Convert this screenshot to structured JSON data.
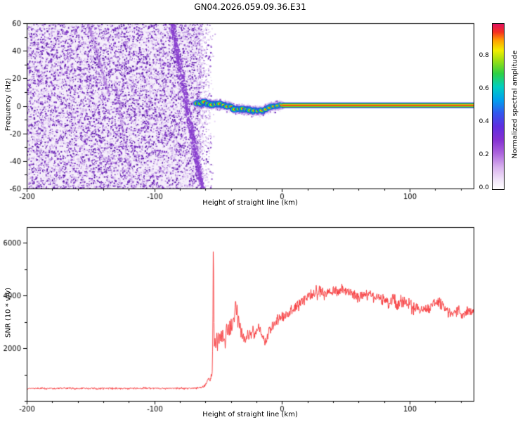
{
  "title": "GN04.2026.059.09.36.E31",
  "chart_data": [
    {
      "type": "heatmap",
      "panel": "spectrogram",
      "title": "GN04.2026.059.09.36.E31",
      "xlabel": "Height of straight line (km)",
      "ylabel": "Frequency (Hz)",
      "xlim": [
        -200,
        150
      ],
      "ylim": [
        -60,
        60
      ],
      "xticks_major": [
        -200,
        -100,
        0,
        100
      ],
      "xtick_minor_step": 20,
      "yticks_major": [
        -60,
        -40,
        -20,
        0,
        20,
        40,
        60
      ],
      "ytick_minor_step": 10,
      "noise_region_x": [
        -200,
        -66
      ],
      "noise_palette": [
        [
          "#f3ebfa",
          0.26
        ],
        [
          "#e7d7f5",
          0.2
        ],
        [
          "#d7bdee",
          0.16
        ],
        [
          "#c29ce4",
          0.13
        ],
        [
          "#a878d8",
          0.1
        ],
        [
          "#8f51cb",
          0.08
        ],
        [
          "#7430bd",
          0.05
        ],
        [
          "#5c1ca8",
          0.02
        ]
      ],
      "streaks": [
        {
          "from": [
            -87,
            60
          ],
          "to": [
            -63,
            -60
          ],
          "width": 2.5,
          "color": "#8a3fd0",
          "alpha": 0.85,
          "density": 900
        },
        {
          "from": [
            -152,
            60
          ],
          "to": [
            -136,
            8
          ],
          "width": 1.6,
          "color": "#a86fd9",
          "alpha": 0.4,
          "density": 260
        },
        {
          "from": [
            -131,
            18
          ],
          "to": [
            -118,
            -60
          ],
          "width": 1.4,
          "color": "#a86fd9",
          "alpha": 0.35,
          "density": 220
        }
      ],
      "signal_path": [
        [
          -67.5,
          1.5
        ],
        [
          -65,
          2.5
        ],
        [
          -63,
          1.0
        ],
        [
          -61,
          2.8
        ],
        [
          -59,
          1.2
        ],
        [
          -57,
          2.2
        ],
        [
          -55,
          0.8
        ],
        [
          -53,
          1.8
        ],
        [
          -51,
          0.5
        ],
        [
          -49,
          1.5
        ],
        [
          -47,
          0.2
        ],
        [
          -45,
          1.0
        ],
        [
          -43,
          -0.5
        ],
        [
          -41,
          0.5
        ],
        [
          -39,
          -1.5
        ],
        [
          -37,
          -2.5
        ],
        [
          -35,
          -1.8
        ],
        [
          -33,
          -2.8
        ],
        [
          -31,
          -2.0
        ],
        [
          -29,
          -3.0
        ],
        [
          -27,
          -2.2
        ],
        [
          -25,
          -3.2
        ],
        [
          -23,
          -4.0
        ],
        [
          -21,
          -3.0
        ],
        [
          -19,
          -3.8
        ],
        [
          -17,
          -3.0
        ],
        [
          -15,
          -3.6
        ],
        [
          -13,
          -2.6
        ],
        [
          -11,
          -1.8
        ],
        [
          -9,
          -1.0
        ],
        [
          -7,
          -0.4
        ],
        [
          -5,
          0.0
        ],
        [
          -3,
          0.3
        ],
        [
          0,
          0.4
        ]
      ],
      "signal_layers": [
        [
          "rgba(140,80,215,0.30)",
          12,
          1
        ],
        [
          "#2b3fd8",
          8,
          0.75
        ],
        [
          "#00b4e4",
          6,
          0.9
        ],
        [
          "#28c838",
          4.4,
          1
        ],
        [
          "#f0ea00",
          2.6,
          1
        ],
        [
          "#ee2020",
          1.3,
          1
        ]
      ],
      "straight_bands": [
        [
          "#2b3fd8",
          8
        ],
        [
          "#28c838",
          5.6
        ],
        [
          "#f0ea00",
          3.2
        ],
        [
          "#ee2020",
          1.6
        ]
      ],
      "signal_straight_x": [
        0,
        150
      ],
      "signal_center_hz": 0.4,
      "blobs": [
        [
          -64,
          4
        ],
        [
          -61,
          4.5
        ],
        [
          -58,
          3.8
        ],
        [
          -55,
          4.6
        ],
        [
          -52,
          3.6
        ],
        [
          -49,
          4.2
        ],
        [
          -46,
          3.4
        ],
        [
          -43,
          4.0
        ],
        [
          -40,
          3.4
        ],
        [
          -37,
          4.6
        ],
        [
          -34,
          3.6
        ],
        [
          -31,
          4.0
        ],
        [
          -28,
          3.4
        ],
        [
          -25,
          4.4
        ],
        [
          -22,
          3.8
        ],
        [
          -19,
          3.4
        ],
        [
          -16,
          4.0
        ],
        [
          -13,
          3.4
        ],
        [
          -10,
          3.2
        ],
        [
          -7,
          3.0
        ],
        [
          -4,
          2.8
        ]
      ],
      "colorbar": {
        "label": "Normalized spectral amplitude",
        "ticks": [
          "0.0",
          "0.2",
          "0.4",
          "0.6",
          "0.8"
        ],
        "range": [
          0,
          1
        ]
      },
      "colormap_stops": [
        [
          0,
          "#ffffff"
        ],
        [
          0.05,
          "#f3e8fa"
        ],
        [
          0.13,
          "#d9b3ee"
        ],
        [
          0.22,
          "#ab62dc"
        ],
        [
          0.3,
          "#8430d2"
        ],
        [
          0.38,
          "#5e2ee0"
        ],
        [
          0.46,
          "#3357ee"
        ],
        [
          0.54,
          "#00a0ee"
        ],
        [
          0.62,
          "#00cfc0"
        ],
        [
          0.7,
          "#2ed044"
        ],
        [
          0.78,
          "#9fe012"
        ],
        [
          0.84,
          "#f2ee00"
        ],
        [
          0.9,
          "#ffa000"
        ],
        [
          0.95,
          "#f53020"
        ],
        [
          1,
          "#e0115f"
        ]
      ]
    },
    {
      "type": "line",
      "panel": "snr",
      "xlabel": "Height of straight line (km)",
      "ylabel": "SNR (10 * v/v)",
      "xlim": [
        -200,
        150
      ],
      "ylim": [
        0,
        6600
      ],
      "xticks_major": [
        -200,
        -100,
        0,
        100
      ],
      "xtick_minor_step": 20,
      "yticks_major": [
        2000,
        4000,
        6000
      ],
      "ytick_minor_step": 1000,
      "line_color": "#f63538",
      "keypoints": [
        [
          -200,
          470
        ],
        [
          -190,
          475
        ],
        [
          -180,
          470
        ],
        [
          -170,
          480
        ],
        [
          -160,
          472
        ],
        [
          -150,
          478
        ],
        [
          -140,
          470
        ],
        [
          -130,
          476
        ],
        [
          -120,
          470
        ],
        [
          -110,
          478
        ],
        [
          -100,
          480
        ],
        [
          -90,
          475
        ],
        [
          -80,
          478
        ],
        [
          -70,
          480
        ],
        [
          -66,
          490
        ],
        [
          -63,
          520
        ],
        [
          -61,
          560
        ],
        [
          -59,
          700
        ],
        [
          -57.5,
          850
        ],
        [
          -56.5,
          750
        ],
        [
          -55.5,
          900
        ],
        [
          -54.6,
          1100
        ],
        [
          -54.1,
          3500
        ],
        [
          -53.8,
          6520
        ],
        [
          -53.4,
          3200
        ],
        [
          -53,
          1900
        ],
        [
          -52.4,
          2400
        ],
        [
          -51.8,
          1900
        ],
        [
          -51.2,
          2600
        ],
        [
          -50.6,
          2000
        ],
        [
          -50,
          2500
        ],
        [
          -49.4,
          2050
        ],
        [
          -48.8,
          2650
        ],
        [
          -48.2,
          2150
        ],
        [
          -47.6,
          2750
        ],
        [
          -47,
          2250
        ],
        [
          -46.4,
          2800
        ],
        [
          -45.8,
          2100
        ],
        [
          -45.2,
          2500
        ],
        [
          -44.6,
          2050
        ],
        [
          -44,
          2450
        ],
        [
          -43.4,
          2900
        ],
        [
          -42.8,
          2350
        ],
        [
          -42.2,
          2850
        ],
        [
          -41.6,
          2400
        ],
        [
          -41,
          2900
        ],
        [
          -40.4,
          2500
        ],
        [
          -39.8,
          3000
        ],
        [
          -39.2,
          2600
        ],
        [
          -38.6,
          3100
        ],
        [
          -38,
          3250
        ],
        [
          -37.4,
          2950
        ],
        [
          -36.8,
          3500
        ],
        [
          -36.2,
          3850
        ],
        [
          -35.7,
          3300
        ],
        [
          -35.2,
          3650
        ],
        [
          -34.6,
          2950
        ],
        [
          -34,
          3300
        ],
        [
          -33.4,
          2750
        ],
        [
          -32.8,
          3050
        ],
        [
          -32.2,
          2550
        ],
        [
          -31.6,
          2800
        ],
        [
          -31,
          2350
        ],
        [
          -30.4,
          2550
        ],
        [
          -29.8,
          2250
        ],
        [
          -29.2,
          2450
        ],
        [
          -28.6,
          2200
        ],
        [
          -28,
          2400
        ],
        [
          -27,
          2550
        ],
        [
          -26,
          2350
        ],
        [
          -25,
          2650
        ],
        [
          -24,
          2430
        ],
        [
          -23,
          2700
        ],
        [
          -22,
          2500
        ],
        [
          -21,
          2620
        ],
        [
          -20,
          2680
        ],
        [
          -19,
          2760
        ],
        [
          -18,
          2820
        ],
        [
          -17,
          2700
        ],
        [
          -16,
          2600
        ],
        [
          -15,
          2400
        ],
        [
          -14,
          2300
        ],
        [
          -13,
          2250
        ],
        [
          -12,
          2450
        ],
        [
          -11,
          2600
        ],
        [
          -10,
          2780
        ],
        [
          -9,
          2700
        ],
        [
          -8,
          2750
        ],
        [
          -7,
          2850
        ],
        [
          -6,
          2900
        ],
        [
          -5,
          2980
        ],
        [
          -4,
          3020
        ],
        [
          -3,
          3080
        ],
        [
          -2,
          3120
        ],
        [
          -1,
          3140
        ],
        [
          0,
          3160
        ],
        [
          2,
          3220
        ],
        [
          4,
          3300
        ],
        [
          6,
          3360
        ],
        [
          8,
          3440
        ],
        [
          10,
          3540
        ],
        [
          12,
          3600
        ],
        [
          14,
          3680
        ],
        [
          16,
          3780
        ],
        [
          18,
          3840
        ],
        [
          20,
          3940
        ],
        [
          22,
          4000
        ],
        [
          24,
          4060
        ],
        [
          26,
          4100
        ],
        [
          28,
          4050
        ],
        [
          30,
          4140
        ],
        [
          33,
          4080
        ],
        [
          36,
          4180
        ],
        [
          39,
          4120
        ],
        [
          42,
          4220
        ],
        [
          45,
          4150
        ],
        [
          48,
          4240
        ],
        [
          51,
          4160
        ],
        [
          54,
          4080
        ],
        [
          57,
          4020
        ],
        [
          60,
          3980
        ],
        [
          63,
          3940
        ],
        [
          66,
          4000
        ],
        [
          69,
          4060
        ],
        [
          72,
          3980
        ],
        [
          75,
          3940
        ],
        [
          78,
          3880
        ],
        [
          81,
          3800
        ],
        [
          84,
          3680
        ],
        [
          87,
          3860
        ],
        [
          90,
          3640
        ],
        [
          93,
          3780
        ],
        [
          96,
          3820
        ],
        [
          99,
          3740
        ],
        [
          102,
          3520
        ],
        [
          105,
          3600
        ],
        [
          108,
          3420
        ],
        [
          111,
          3560
        ],
        [
          114,
          3480
        ],
        [
          117,
          3620
        ],
        [
          120,
          3720
        ],
        [
          123,
          3820
        ],
        [
          126,
          3560
        ],
        [
          129,
          3420
        ],
        [
          132,
          3360
        ],
        [
          135,
          3300
        ],
        [
          138,
          3440
        ],
        [
          141,
          3320
        ],
        [
          144,
          3380
        ],
        [
          147,
          3420
        ],
        [
          150,
          3360
        ]
      ],
      "noise_amplitude": [
        [
          -200,
          55
        ],
        [
          -64,
          55
        ],
        [
          -60,
          90
        ],
        [
          -56,
          160
        ],
        [
          -53,
          240
        ],
        [
          -50,
          270
        ],
        [
          -40,
          280
        ],
        [
          -30,
          260
        ],
        [
          -20,
          270
        ],
        [
          -10,
          280
        ],
        [
          0,
          290
        ],
        [
          10,
          320
        ],
        [
          20,
          350
        ],
        [
          40,
          360
        ],
        [
          60,
          340
        ],
        [
          80,
          340
        ],
        [
          100,
          330
        ],
        [
          120,
          320
        ],
        [
          150,
          290
        ]
      ]
    }
  ]
}
